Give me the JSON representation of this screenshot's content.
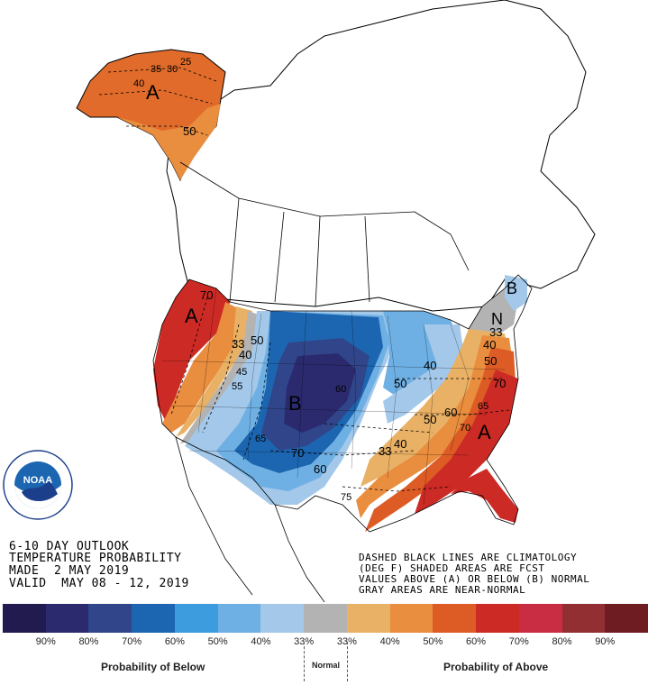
{
  "legend": {
    "colors": [
      "#211b4f",
      "#2b2a6e",
      "#31468a",
      "#1c66b1",
      "#3d9cdd",
      "#6fb0e4",
      "#a3c8ea",
      "#b3b3b3",
      "#e9b165",
      "#e98d3e",
      "#dd5c25",
      "#cc2a24",
      "#c92d43",
      "#922f33",
      "#6e1b22"
    ],
    "labels": [
      "90%",
      "80%",
      "70%",
      "60%",
      "50%",
      "40%",
      "33%",
      "33%",
      "40%",
      "50%",
      "60%",
      "70%",
      "80%",
      "90%"
    ],
    "below_caption": "Probability of Below",
    "normal_caption": "Normal",
    "above_caption": "Probability of Above"
  },
  "title_block": {
    "line1": "6-10 DAY OUTLOOK",
    "line2": "TEMPERATURE PROBABILITY",
    "line3": "MADE  2 MAY 2019",
    "line4": "VALID  MAY 08 - 12, 2019"
  },
  "note_block": {
    "line1": "DASHED BLACK LINES ARE CLIMATOLOGY",
    "line2": "(DEG F) SHADED AREAS ARE FCST",
    "line3": "VALUES ABOVE (A) OR BELOW (B) NORMAL",
    "line4": "GRAY AREAS ARE NEAR-NORMAL"
  },
  "logo": {
    "text": "NOAA",
    "ring_text": "NATIONAL OCEANIC AND ATMOSPHERIC ADMINISTRATION · U.S. DEPARTMENT OF COMMERCE"
  },
  "map_labels": {
    "alaska_a": "A",
    "west_a": "A",
    "center_b": "B",
    "northeast_b": "B",
    "northeast_n": "N",
    "southeast_a": "A",
    "c25": "25",
    "c30": "30",
    "c35": "35",
    "c40ak": "40",
    "c50ak": "50",
    "c70w": "70",
    "c33w": "33",
    "c50w": "50",
    "c40w": "40",
    "c45w": "45",
    "c55w": "55",
    "c60c": "60",
    "c65c": "65",
    "c70c": "70",
    "c60s": "60",
    "c75s": "75",
    "c40ne": "40",
    "c50ne": "50",
    "c33ne": "33",
    "c40e": "40",
    "c50e": "50",
    "c70e": "70",
    "c50se": "50",
    "c60se": "60",
    "c65se": "65",
    "c70se": "70",
    "c33se": "33",
    "c40se": "40"
  }
}
